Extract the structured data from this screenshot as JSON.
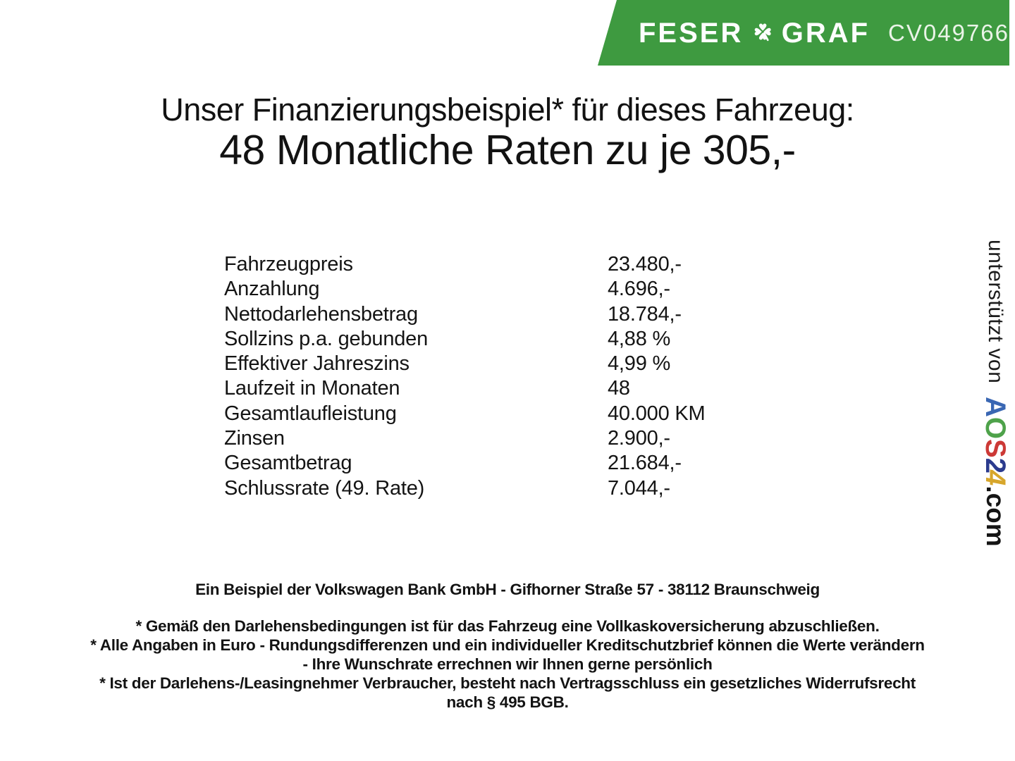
{
  "header": {
    "brand_left": "FESER",
    "brand_right": "GRAF",
    "icon": "four-leaf-clover",
    "code": "CV049766",
    "banner_color": "#3e9a40"
  },
  "title": {
    "line1": "Unser Finanzierungsbeispiel* für dieses Fahrzeug:",
    "line2": "48 Monatliche Raten zu je 305,-"
  },
  "finance": {
    "rows": [
      {
        "label": "Fahrzeugpreis",
        "value": "23.480,-"
      },
      {
        "label": "Anzahlung",
        "value": "4.696,-"
      },
      {
        "label": "Nettodarlehensbetrag",
        "value": "18.784,-"
      },
      {
        "label": "Sollzins p.a. gebunden",
        "value": "4,88 %"
      },
      {
        "label": "Effektiver Jahreszins",
        "value": "4,99 %"
      },
      {
        "label": "Laufzeit in Monaten",
        "value": "48"
      },
      {
        "label": "Gesamtlaufleistung",
        "value": "40.000 KM"
      },
      {
        "label": "Zinsen",
        "value": "2.900,-"
      },
      {
        "label": "Gesamtbetrag",
        "value": "21.684,-"
      },
      {
        "label": "Schlussrate (49. Rate)",
        "value": "7.044,-"
      }
    ]
  },
  "footer": {
    "bank_line": "Ein Beispiel der Volkswagen Bank GmbH - Gifhorner Straße 57 - 38112 Braunschweig",
    "disclaimer_lines": [
      "* Gemäß den Darlehensbedingungen ist für das Fahrzeug eine Vollkaskoversicherung abzuschließen.",
      "* Alle Angaben in Euro - Rundungsdifferenzen und ein individueller Kreditschutzbrief können die Werte verändern",
      "- Ihre Wunschrate errechnen wir Ihnen gerne persönlich",
      "* Ist der Darlehens-/Leasingnehmer Verbraucher, besteht nach Vertragsschluss ein gesetzliches Widerrufsrecht",
      "nach § 495 BGB."
    ]
  },
  "sidebar": {
    "prefix": "unterstützt von",
    "brand_letters": [
      {
        "char": "A",
        "color": "#3a67b3"
      },
      {
        "char": "O",
        "color": "#4ea24a"
      },
      {
        "char": "S",
        "color": "#cc3936"
      },
      {
        "char": "2",
        "color": "#2b3b8e"
      },
      {
        "char": "4",
        "color": "#d7a62b",
        "italic": true
      }
    ],
    "suffix": ".com"
  }
}
